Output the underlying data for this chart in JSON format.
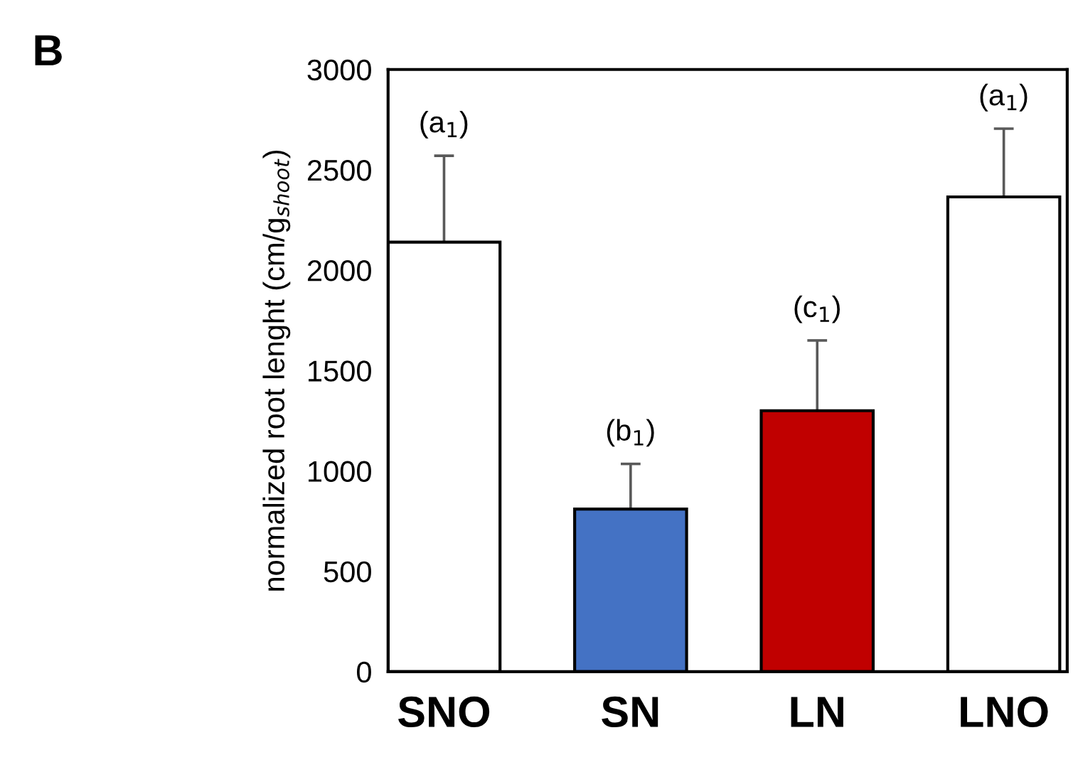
{
  "chart_data": {
    "type": "bar",
    "ylabel": "normalized root lenght (cm/g$_{shoot}$)",
    "categories": [
      "SNO",
      "SN",
      "LN",
      "LNO"
    ],
    "values": [
      2140,
      810,
      1300,
      2365
    ],
    "colors": [
      "#ffffff",
      "#4472c4",
      "#c00000",
      "#ffffff"
    ],
    "errors": [
      430,
      225,
      350,
      340
    ],
    "ylim": [
      0,
      3000
    ],
    "yticks": [
      0,
      500,
      1000,
      1500,
      2000,
      2500,
      3000
    ],
    "grid": false,
    "annotations": [
      "(a$_{1}$)",
      "(b$_{1}$)",
      "(c$_{1}$)",
      "(a$_{1}$)",
      "B"
    ]
  }
}
